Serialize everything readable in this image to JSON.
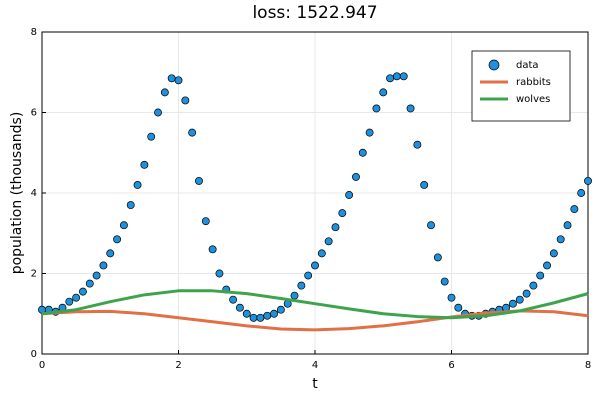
{
  "chart_data": {
    "type": "scatter-line",
    "title": "loss: 1522.947",
    "x_label": "t",
    "y_label": "population (thousands)",
    "xlim": [
      0,
      8
    ],
    "ylim": [
      0,
      8
    ],
    "xticks": [
      0,
      2,
      4,
      6,
      8
    ],
    "yticks": [
      0,
      2,
      4,
      6,
      8
    ],
    "grid": true,
    "legend": "top-right",
    "series": [
      {
        "name": "data",
        "type": "scatter",
        "color": "#1f91dc",
        "x": [
          0,
          0.1,
          0.2,
          0.3,
          0.4,
          0.5,
          0.6,
          0.7,
          0.8,
          0.9,
          1,
          1.1,
          1.2,
          1.3,
          1.4,
          1.5,
          1.6,
          1.7,
          1.8,
          1.9,
          2,
          2.1,
          2.2,
          2.3,
          2.4,
          2.5,
          2.6,
          2.7,
          2.8,
          2.9,
          3,
          3.1,
          3.2,
          3.3,
          3.4,
          3.5,
          3.6,
          3.7,
          3.8,
          3.9,
          4,
          4.1,
          4.2,
          4.3,
          4.4,
          4.5,
          4.6,
          4.7,
          4.8,
          4.9,
          5,
          5.1,
          5.2,
          5.3,
          5.4,
          5.5,
          5.6,
          5.7,
          5.8,
          5.9,
          6,
          6.1,
          6.2,
          6.3,
          6.4,
          6.5,
          6.6,
          6.7,
          6.8,
          6.9,
          7,
          7.1,
          7.2,
          7.3,
          7.4,
          7.5,
          7.6,
          7.7,
          7.8,
          7.9,
          8
        ],
        "values": [
          1.1,
          1.1,
          1.05,
          1.15,
          1.3,
          1.4,
          1.55,
          1.75,
          1.95,
          2.2,
          2.5,
          2.85,
          3.2,
          3.7,
          4.2,
          4.7,
          5.4,
          6.0,
          6.5,
          6.85,
          6.8,
          6.3,
          5.5,
          4.3,
          3.3,
          2.6,
          2.0,
          1.6,
          1.35,
          1.15,
          1.0,
          0.9,
          0.9,
          0.95,
          1.0,
          1.1,
          1.25,
          1.45,
          1.7,
          1.95,
          2.2,
          2.5,
          2.8,
          3.15,
          3.5,
          3.95,
          4.4,
          5.0,
          5.5,
          6.1,
          6.5,
          6.85,
          6.9,
          6.9,
          6.1,
          5.2,
          4.2,
          3.2,
          2.4,
          1.8,
          1.4,
          1.15,
          1.0,
          0.95,
          0.95,
          1.0,
          1.05,
          1.1,
          1.15,
          1.25,
          1.35,
          1.5,
          1.7,
          1.95,
          2.2,
          2.5,
          2.85,
          3.2,
          3.6,
          4.0,
          4.3
        ]
      },
      {
        "name": "rabbits",
        "type": "line",
        "color": "#e26f46",
        "x": [
          0,
          0.5,
          1,
          1.5,
          2,
          2.5,
          3,
          3.5,
          4,
          4.5,
          5,
          5.5,
          6,
          6.5,
          7,
          7.5,
          8
        ],
        "values": [
          1.0,
          1.05,
          1.06,
          1.0,
          0.9,
          0.8,
          0.7,
          0.62,
          0.6,
          0.63,
          0.7,
          0.8,
          0.92,
          1.02,
          1.07,
          1.05,
          0.95
        ]
      },
      {
        "name": "wolves",
        "type": "line",
        "color": "#3da44d",
        "x": [
          0,
          0.5,
          1,
          1.5,
          2,
          2.5,
          3,
          3.5,
          4,
          4.5,
          5,
          5.5,
          6,
          6.5,
          7,
          7.5,
          8
        ],
        "values": [
          1.0,
          1.1,
          1.3,
          1.47,
          1.57,
          1.57,
          1.5,
          1.38,
          1.25,
          1.12,
          1.0,
          0.93,
          0.9,
          0.95,
          1.07,
          1.27,
          1.5
        ]
      }
    ]
  }
}
